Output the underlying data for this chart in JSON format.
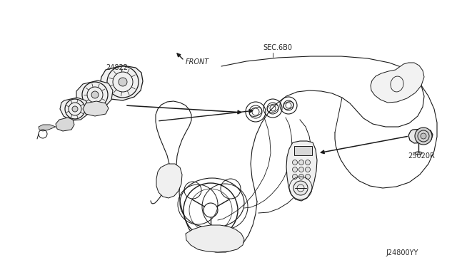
{
  "background_color": "#ffffff",
  "line_color": "#1a1a1a",
  "text_color": "#2a2a2a",
  "label_24822": "24822",
  "label_25020R": "25020R",
  "label_sec6B0": "SEC.6B0",
  "label_front": "FRONT",
  "label_code": "J24800YY",
  "fig_width": 6.4,
  "fig_height": 3.72,
  "dpi": 100
}
